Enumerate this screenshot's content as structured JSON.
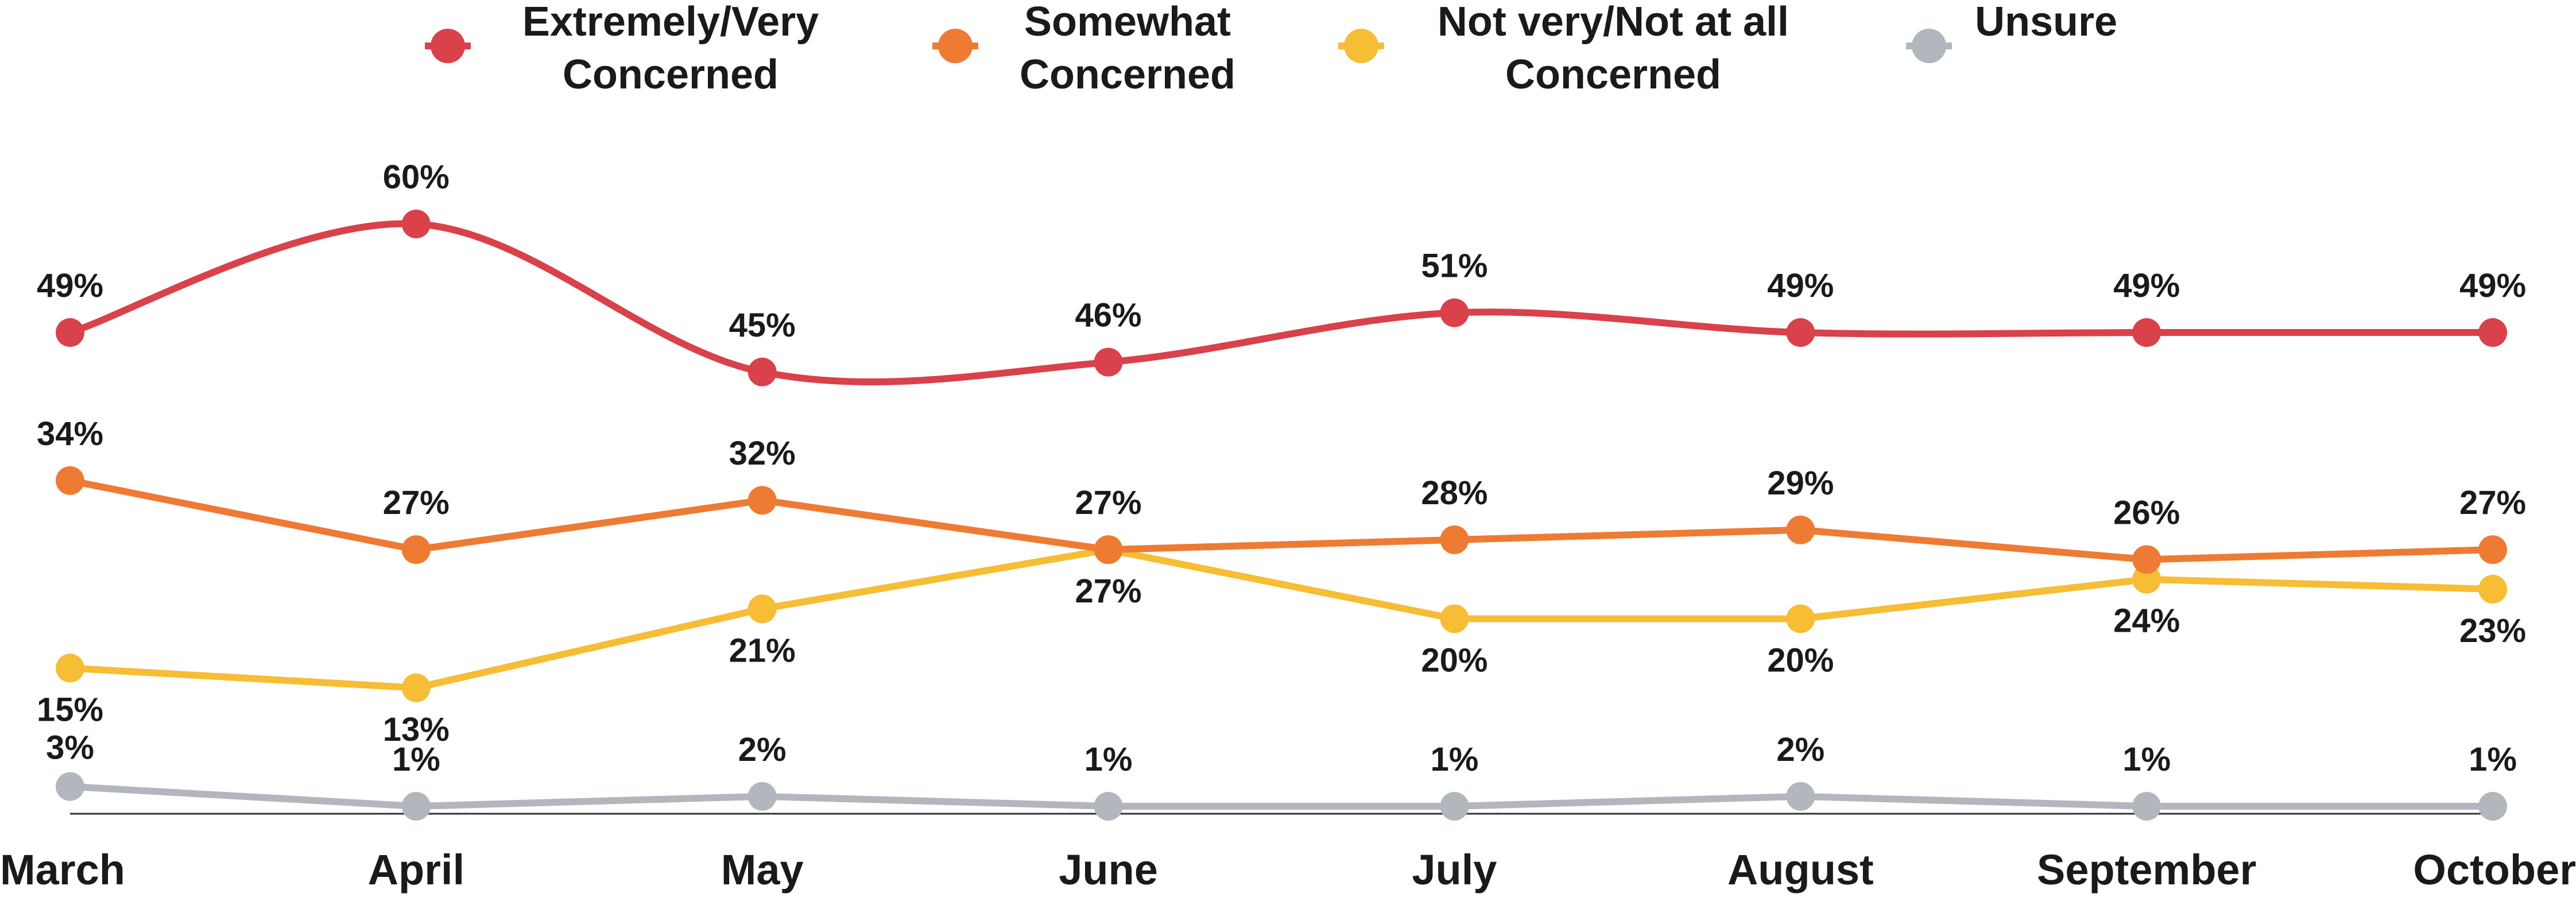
{
  "chart_data": {
    "type": "line",
    "title": "",
    "xlabel": "",
    "ylabel": "",
    "ylim": [
      0,
      65
    ],
    "grid": false,
    "legend_position": "top-center",
    "categories": [
      "March",
      "April",
      "May",
      "June",
      "July",
      "August",
      "September",
      "October"
    ],
    "series": [
      {
        "name": "Extremely/Very Concerned",
        "name_lines": [
          "Extremely/Very",
          "Concerned"
        ],
        "color": "#d9414b",
        "values": [
          49,
          60,
          45,
          46,
          51,
          49,
          49,
          49
        ],
        "labels": [
          "49%",
          "60%",
          "45%",
          "46%",
          "51%",
          "49%",
          "49%",
          "49%"
        ],
        "smooth": true
      },
      {
        "name": "Somewhat Concerned",
        "name_lines": [
          "Somewhat",
          "Concerned"
        ],
        "color": "#ee7b33",
        "values": [
          34,
          27,
          32,
          27,
          28,
          29,
          26,
          27
        ],
        "labels": [
          "34%",
          "27%",
          "32%",
          "27%",
          "28%",
          "29%",
          "26%",
          "27%"
        ],
        "smooth": false
      },
      {
        "name": "Not very/Not at all Concerned",
        "name_lines": [
          "Not very/Not at all",
          "Concerned"
        ],
        "color": "#f6bd35",
        "values": [
          15,
          13,
          21,
          27,
          20,
          20,
          24,
          23
        ],
        "labels": [
          "15%",
          "13%",
          "21%",
          "27%",
          "20%",
          "20%",
          "24%",
          "23%"
        ],
        "smooth": false
      },
      {
        "name": "Unsure",
        "name_lines": [
          "Unsure"
        ],
        "color": "#b2b6bd",
        "values": [
          3,
          1,
          2,
          1,
          1,
          2,
          1,
          1
        ],
        "labels": [
          "3%",
          "1%",
          "2%",
          "1%",
          "1%",
          "2%",
          "1%",
          "1%"
        ],
        "smooth": false
      }
    ]
  }
}
